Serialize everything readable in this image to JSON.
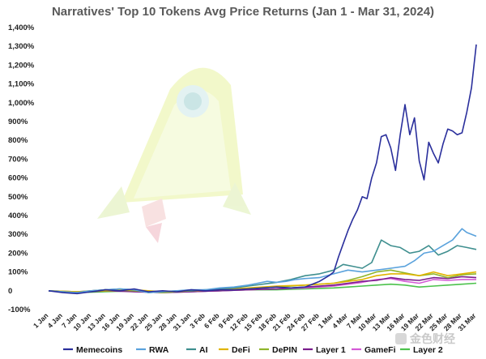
{
  "chart_data": {
    "type": "line",
    "title": "Narratives' Top 10 Tokens Avg Price Returns (Jan 1 - Mar 31, 2024)",
    "y_ticks": [
      "1,400%",
      "1,300%",
      "1,200%",
      "1,100%",
      "1,000%",
      "900%",
      "800%",
      "700%",
      "600%",
      "500%",
      "400%",
      "300%",
      "200%",
      "100%",
      "0",
      "-100%"
    ],
    "ylim": [
      -100,
      1400
    ],
    "x_labels": [
      "1 Jan",
      "4 Jan",
      "7 Jan",
      "10 Jan",
      "13 Jan",
      "16 Jan",
      "19 Jan",
      "22 Jan",
      "25 Jan",
      "28 Jan",
      "31 Jan",
      "3 Feb",
      "6 Feb",
      "9 Feb",
      "12 Feb",
      "15 Feb",
      "18 Feb",
      "21 Feb",
      "24 Feb",
      "27 Feb",
      "1 Mar",
      "4 Mar",
      "7 Mar",
      "10 Mar",
      "13 Mar",
      "16 Mar",
      "19 Mar",
      "22 Mar",
      "25 Mar",
      "28 Mar",
      "31 Mar"
    ],
    "x_days": [
      0,
      3,
      6,
      9,
      12,
      15,
      18,
      21,
      24,
      27,
      30,
      33,
      36,
      39,
      42,
      45,
      48,
      51,
      54,
      57,
      60,
      63,
      66,
      69,
      72,
      75,
      78,
      81,
      84,
      87,
      90
    ],
    "series": [
      {
        "name": "Memecoins",
        "color": "#2a2f9c",
        "x": [
          0,
          3,
          6,
          9,
          12,
          15,
          18,
          21,
          24,
          27,
          30,
          33,
          36,
          39,
          42,
          45,
          48,
          51,
          54,
          57,
          59,
          60,
          61,
          62,
          63,
          64,
          65,
          66,
          67,
          68,
          69,
          70,
          71,
          72,
          73,
          74,
          75,
          76,
          77,
          78,
          79,
          80,
          81,
          82,
          83,
          84,
          85,
          86,
          87,
          88,
          89,
          90
        ],
        "y": [
          0,
          -10,
          -15,
          -5,
          5,
          0,
          10,
          -5,
          0,
          -5,
          5,
          0,
          5,
          5,
          10,
          15,
          20,
          15,
          20,
          50,
          80,
          100,
          180,
          250,
          320,
          380,
          430,
          500,
          490,
          600,
          680,
          820,
          830,
          760,
          640,
          830,
          990,
          830,
          920,
          690,
          590,
          790,
          730,
          680,
          780,
          860,
          850,
          830,
          840,
          950,
          1080,
          1310
        ]
      },
      {
        "name": "RWA",
        "color": "#5aa2dc",
        "x": [
          0,
          3,
          6,
          9,
          12,
          15,
          18,
          21,
          24,
          27,
          30,
          33,
          36,
          39,
          42,
          44,
          46,
          48,
          50,
          52,
          54,
          57,
          60,
          63,
          66,
          69,
          72,
          75,
          77,
          79,
          81,
          83,
          85,
          87,
          88,
          90
        ],
        "y": [
          0,
          -5,
          -10,
          0,
          5,
          10,
          5,
          -10,
          -5,
          0,
          5,
          5,
          15,
          20,
          30,
          40,
          50,
          45,
          50,
          60,
          65,
          70,
          90,
          110,
          100,
          110,
          120,
          130,
          160,
          200,
          210,
          240,
          270,
          330,
          310,
          290
        ]
      },
      {
        "name": "AI",
        "color": "#3f8f8f",
        "x": [
          0,
          3,
          6,
          9,
          12,
          15,
          18,
          21,
          24,
          27,
          30,
          33,
          36,
          39,
          42,
          45,
          48,
          51,
          54,
          57,
          60,
          62,
          64,
          66,
          68,
          70,
          72,
          74,
          76,
          78,
          80,
          82,
          84,
          86,
          88,
          90
        ],
        "y": [
          0,
          -5,
          -10,
          0,
          5,
          10,
          5,
          -10,
          -5,
          0,
          0,
          5,
          10,
          15,
          25,
          35,
          45,
          60,
          80,
          90,
          110,
          140,
          130,
          120,
          150,
          270,
          240,
          230,
          200,
          210,
          240,
          190,
          210,
          240,
          230,
          220
        ]
      },
      {
        "name": "DeFi",
        "color": "#e0b400",
        "x": [
          0,
          6,
          12,
          18,
          24,
          30,
          36,
          42,
          48,
          54,
          60,
          63,
          66,
          69,
          72,
          75,
          78,
          81,
          84,
          87,
          90
        ],
        "y": [
          0,
          -5,
          0,
          5,
          -5,
          0,
          5,
          15,
          25,
          30,
          40,
          50,
          60,
          80,
          90,
          90,
          80,
          100,
          80,
          90,
          100
        ]
      },
      {
        "name": "DePIN",
        "color": "#8fb52b",
        "x": [
          0,
          6,
          12,
          18,
          24,
          30,
          36,
          42,
          48,
          54,
          60,
          63,
          66,
          69,
          72,
          75,
          78,
          81,
          84,
          87,
          90
        ],
        "y": [
          0,
          -5,
          5,
          0,
          -10,
          0,
          5,
          10,
          20,
          30,
          40,
          55,
          75,
          100,
          110,
          95,
          80,
          90,
          70,
          85,
          90
        ]
      },
      {
        "name": "Layer 1",
        "color": "#7a1d8c",
        "x": [
          0,
          6,
          12,
          18,
          24,
          30,
          36,
          42,
          48,
          54,
          60,
          63,
          66,
          69,
          72,
          75,
          78,
          81,
          84,
          87,
          90
        ],
        "y": [
          0,
          -10,
          0,
          -5,
          -10,
          -5,
          0,
          5,
          10,
          20,
          30,
          40,
          50,
          55,
          70,
          60,
          55,
          70,
          65,
          75,
          70
        ]
      },
      {
        "name": "GameFi",
        "color": "#d45ad6",
        "x": [
          0,
          6,
          12,
          18,
          24,
          30,
          36,
          42,
          48,
          54,
          60,
          63,
          66,
          69,
          72,
          75,
          78,
          81,
          84,
          87,
          90
        ],
        "y": [
          0,
          -5,
          5,
          -5,
          -10,
          -5,
          0,
          5,
          10,
          15,
          25,
          35,
          45,
          60,
          65,
          50,
          40,
          60,
          55,
          60,
          60
        ]
      },
      {
        "name": "Layer 2",
        "color": "#4cc24c",
        "x": [
          0,
          6,
          12,
          18,
          24,
          30,
          36,
          42,
          48,
          54,
          60,
          63,
          66,
          69,
          72,
          75,
          78,
          81,
          84,
          87,
          90
        ],
        "y": [
          0,
          -10,
          -5,
          0,
          -10,
          -5,
          0,
          5,
          5,
          10,
          15,
          20,
          25,
          30,
          35,
          30,
          20,
          25,
          30,
          35,
          40
        ]
      }
    ],
    "grid": false,
    "legend_position": "bottom"
  },
  "watermark": "金色财经"
}
